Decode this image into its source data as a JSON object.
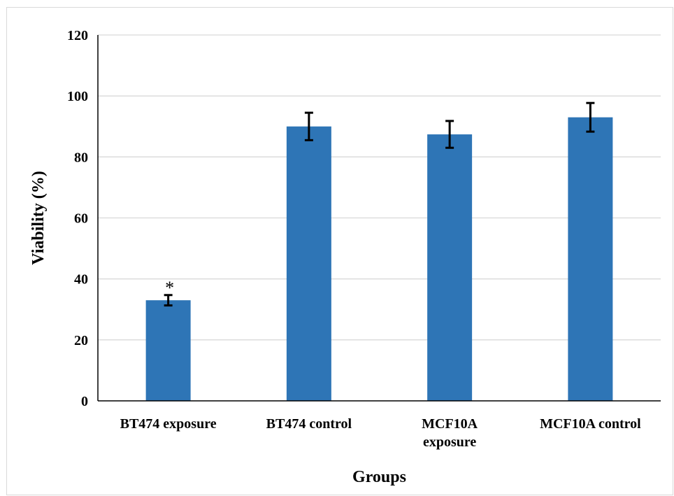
{
  "chart_data": {
    "type": "bar",
    "categories": [
      [
        "BT474 exposure"
      ],
      [
        "BT474 control"
      ],
      [
        "MCF10A",
        "exposure"
      ],
      [
        "MCF10A control"
      ]
    ],
    "values": [
      33,
      90,
      87.4,
      93
    ],
    "errors": [
      1.7,
      4.5,
      4.4,
      4.7
    ],
    "annotations": [
      "*",
      "",
      "",
      ""
    ],
    "xlabel": "Groups",
    "ylabel": "Viability (%)",
    "ylim": [
      0,
      120
    ],
    "yticks": [
      "0",
      "20",
      "40",
      "60",
      "80",
      "100",
      "120"
    ],
    "grid": true,
    "legend": "none",
    "colors": {
      "bar": "#2e75b6",
      "grid": "#d9d9d9",
      "axis": "#000000",
      "error_bar": "#000000"
    }
  }
}
